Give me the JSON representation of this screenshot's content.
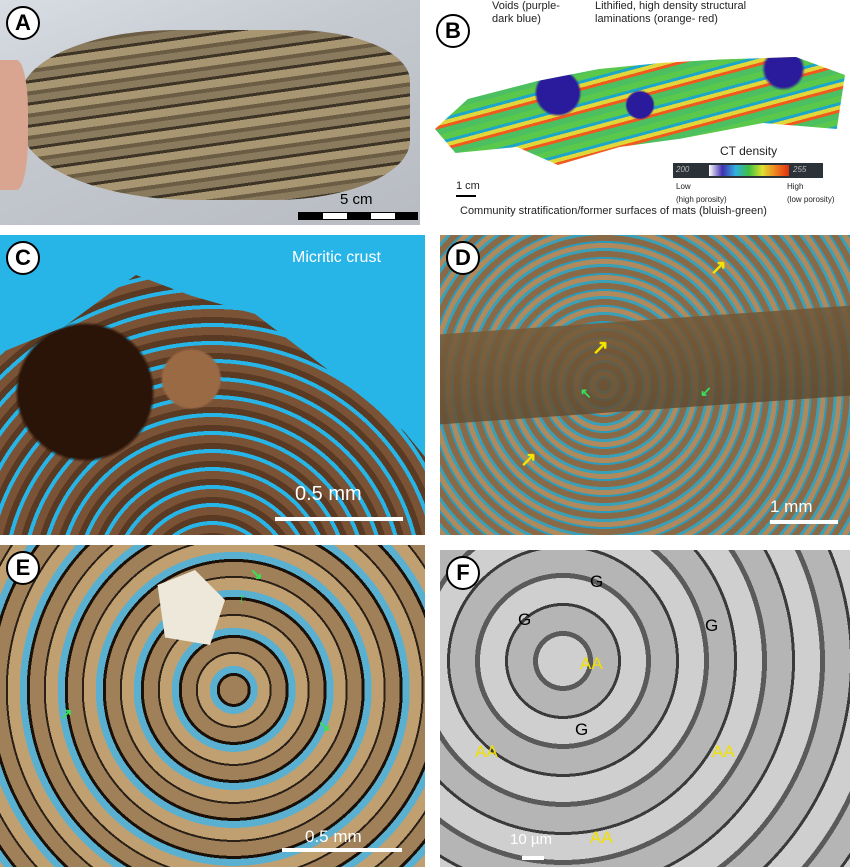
{
  "panels": {
    "A": {
      "label": "A",
      "scale": "5 cm"
    },
    "B": {
      "label": "B",
      "voids": "Voids (purple-\ndark blue)",
      "lithified": "Lithified, high density structural\nlaminations (orange- red)",
      "ct_density": "CT density",
      "low": "Low\n(high porosity)",
      "high": "High\n(low porosity)",
      "min": "200",
      "max": "255",
      "scale": "1 cm",
      "community": "Community stratification/former surfaces of mats (bluish-green)"
    },
    "C": {
      "label": "C",
      "annotation": "Micritic crust",
      "scale": "0.5 mm"
    },
    "D": {
      "label": "D",
      "scale": "1 mm"
    },
    "E": {
      "label": "E",
      "scale": "0.5 mm"
    },
    "F": {
      "label": "F",
      "grain": "G",
      "aa": "AA",
      "scale": "10 µm"
    }
  },
  "colors": {
    "yellow_arrow": "#f5e400",
    "green_arrow": "#39e05a",
    "aa_text": "#f0e000",
    "thin_section_blue": "#27b4e6"
  }
}
